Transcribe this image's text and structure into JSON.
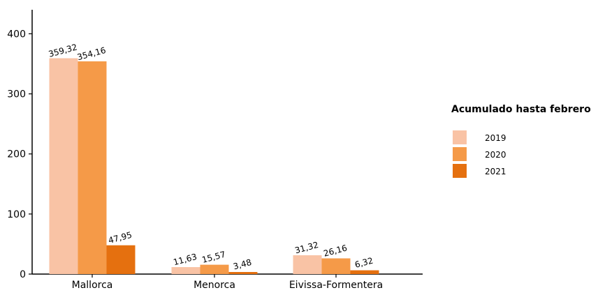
{
  "chart_data": {
    "type": "bar",
    "title": "",
    "xlabel": "",
    "ylabel": "",
    "categories": [
      "Mallorca",
      "Menorca",
      "Eivissa-Formentera"
    ],
    "series": [
      {
        "name": "2019",
        "color": "#f9c3a5",
        "values": [
          359.32,
          11.63,
          31.32
        ],
        "labels": [
          "359,32",
          "11,63",
          "31,32"
        ]
      },
      {
        "name": "2020",
        "color": "#f59a48",
        "values": [
          354.16,
          15.57,
          26.16
        ],
        "labels": [
          "354,16",
          "15,57",
          "26,16"
        ]
      },
      {
        "name": "2021",
        "color": "#e5700f",
        "values": [
          47.95,
          3.48,
          6.32
        ],
        "labels": [
          "47,95",
          "3,48",
          "6,32"
        ]
      }
    ],
    "ylim": [
      0,
      440
    ],
    "yticks": [
      0,
      100,
      200,
      300,
      400
    ],
    "grid": false,
    "legend": {
      "title": "Acumulado hasta febrero",
      "position": "right"
    }
  }
}
